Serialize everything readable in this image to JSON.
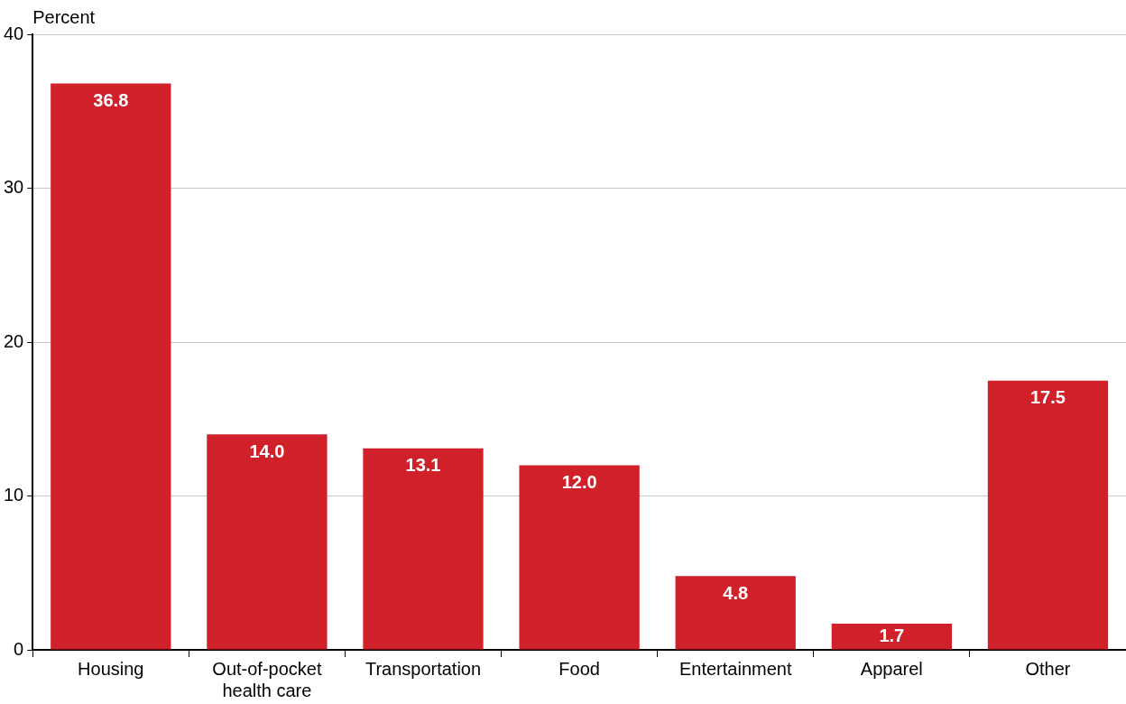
{
  "chart_data": {
    "type": "bar",
    "ylabel": "Percent",
    "categories": [
      "Housing",
      "Out-of-pocket health care",
      "Transportation",
      "Food",
      "Entertainment",
      "Apparel",
      "Other"
    ],
    "values": [
      36.8,
      14.0,
      13.1,
      12.0,
      4.8,
      1.7,
      17.5
    ],
    "value_labels": [
      "36.8",
      "14.0",
      "13.1",
      "12.0",
      "4.8",
      "1.7",
      "17.5"
    ],
    "color": "#d0202a",
    "ylim": [
      0,
      40
    ],
    "yticks": [
      0,
      10,
      20,
      30,
      40
    ],
    "grid": "y",
    "legend": false
  }
}
